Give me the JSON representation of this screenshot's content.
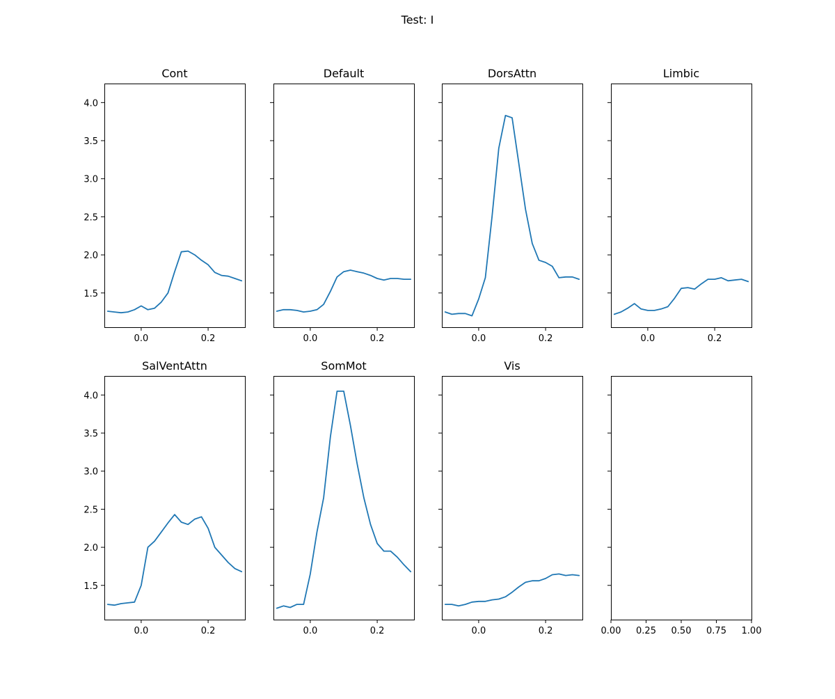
{
  "figure": {
    "title": "Test: I"
  },
  "style": {
    "line_color": "#1f77b4"
  },
  "chart_data": [
    {
      "type": "line",
      "title": "Cont",
      "xlim": [
        -0.11,
        0.31
      ],
      "ylim": [
        1.05,
        4.25
      ],
      "xticks": [
        "0.0",
        "0.2"
      ],
      "yticks": [
        "1.5",
        "2.0",
        "2.5",
        "3.0",
        "3.5",
        "4.0"
      ],
      "x": [
        -0.1,
        -0.08,
        -0.06,
        -0.04,
        -0.02,
        0.0,
        0.02,
        0.04,
        0.06,
        0.08,
        0.1,
        0.12,
        0.14,
        0.16,
        0.18,
        0.2,
        0.22,
        0.24,
        0.26,
        0.28,
        0.3
      ],
      "series": [
        {
          "values": [
            1.26,
            1.25,
            1.24,
            1.25,
            1.28,
            1.33,
            1.28,
            1.3,
            1.38,
            1.5,
            1.78,
            2.04,
            2.05,
            2.0,
            1.93,
            1.87,
            1.77,
            1.73,
            1.72,
            1.69,
            1.66
          ]
        }
      ]
    },
    {
      "type": "line",
      "title": "Default",
      "xlim": [
        -0.11,
        0.31
      ],
      "ylim": [
        1.05,
        4.25
      ],
      "xticks": [
        "0.0",
        "0.2"
      ],
      "yticks": [],
      "x": [
        -0.1,
        -0.08,
        -0.06,
        -0.04,
        -0.02,
        0.0,
        0.02,
        0.04,
        0.06,
        0.08,
        0.1,
        0.12,
        0.14,
        0.16,
        0.18,
        0.2,
        0.22,
        0.24,
        0.26,
        0.28,
        0.3
      ],
      "series": [
        {
          "values": [
            1.26,
            1.28,
            1.28,
            1.27,
            1.25,
            1.26,
            1.28,
            1.35,
            1.52,
            1.71,
            1.78,
            1.8,
            1.78,
            1.76,
            1.73,
            1.69,
            1.67,
            1.69,
            1.69,
            1.68,
            1.68
          ]
        }
      ]
    },
    {
      "type": "line",
      "title": "DorsAttn",
      "xlim": [
        -0.11,
        0.31
      ],
      "ylim": [
        1.05,
        4.25
      ],
      "xticks": [
        "0.0",
        "0.2"
      ],
      "yticks": [],
      "x": [
        -0.1,
        -0.08,
        -0.06,
        -0.04,
        -0.02,
        0.0,
        0.02,
        0.04,
        0.06,
        0.08,
        0.1,
        0.12,
        0.14,
        0.16,
        0.18,
        0.2,
        0.22,
        0.24,
        0.26,
        0.28,
        0.3
      ],
      "series": [
        {
          "values": [
            1.25,
            1.22,
            1.23,
            1.23,
            1.2,
            1.42,
            1.7,
            2.5,
            3.4,
            3.83,
            3.8,
            3.2,
            2.6,
            2.15,
            1.93,
            1.9,
            1.85,
            1.7,
            1.71,
            1.71,
            1.68
          ]
        }
      ]
    },
    {
      "type": "line",
      "title": "Limbic",
      "xlim": [
        -0.11,
        0.31
      ],
      "ylim": [
        1.05,
        4.25
      ],
      "xticks": [
        "0.0",
        "0.2"
      ],
      "yticks": [],
      "x": [
        -0.1,
        -0.08,
        -0.06,
        -0.04,
        -0.02,
        0.0,
        0.02,
        0.04,
        0.06,
        0.08,
        0.1,
        0.12,
        0.14,
        0.16,
        0.18,
        0.2,
        0.22,
        0.24,
        0.26,
        0.28,
        0.3
      ],
      "series": [
        {
          "values": [
            1.22,
            1.25,
            1.3,
            1.36,
            1.29,
            1.27,
            1.27,
            1.29,
            1.32,
            1.43,
            1.56,
            1.57,
            1.55,
            1.62,
            1.68,
            1.68,
            1.7,
            1.66,
            1.67,
            1.68,
            1.65
          ]
        }
      ]
    },
    {
      "type": "line",
      "title": "SalVentAttn",
      "xlim": [
        -0.11,
        0.31
      ],
      "ylim": [
        1.05,
        4.25
      ],
      "xticks": [
        "0.0",
        "0.2"
      ],
      "yticks": [
        "1.5",
        "2.0",
        "2.5",
        "3.0",
        "3.5",
        "4.0"
      ],
      "x": [
        -0.1,
        -0.08,
        -0.06,
        -0.04,
        -0.02,
        0.0,
        0.02,
        0.04,
        0.06,
        0.08,
        0.1,
        0.12,
        0.14,
        0.16,
        0.18,
        0.2,
        0.22,
        0.24,
        0.26,
        0.28,
        0.3
      ],
      "series": [
        {
          "values": [
            1.25,
            1.24,
            1.26,
            1.27,
            1.28,
            1.5,
            2.0,
            2.08,
            2.2,
            2.32,
            2.43,
            2.33,
            2.3,
            2.37,
            2.4,
            2.25,
            2.0,
            1.9,
            1.8,
            1.72,
            1.68
          ]
        }
      ]
    },
    {
      "type": "line",
      "title": "SomMot",
      "xlim": [
        -0.11,
        0.31
      ],
      "ylim": [
        1.05,
        4.25
      ],
      "xticks": [
        "0.0",
        "0.2"
      ],
      "yticks": [],
      "x": [
        -0.1,
        -0.08,
        -0.06,
        -0.04,
        -0.02,
        0.0,
        0.02,
        0.04,
        0.06,
        0.08,
        0.1,
        0.12,
        0.14,
        0.16,
        0.18,
        0.2,
        0.22,
        0.24,
        0.26,
        0.28,
        0.3
      ],
      "series": [
        {
          "values": [
            1.2,
            1.23,
            1.21,
            1.25,
            1.25,
            1.65,
            2.2,
            2.65,
            3.45,
            4.05,
            4.05,
            3.6,
            3.1,
            2.65,
            2.3,
            2.05,
            1.95,
            1.95,
            1.87,
            1.77,
            1.68
          ]
        }
      ]
    },
    {
      "type": "line",
      "title": "Vis",
      "xlim": [
        -0.11,
        0.31
      ],
      "ylim": [
        1.05,
        4.25
      ],
      "xticks": [
        "0.0",
        "0.2"
      ],
      "yticks": [],
      "x": [
        -0.1,
        -0.08,
        -0.06,
        -0.04,
        -0.02,
        0.0,
        0.02,
        0.04,
        0.06,
        0.08,
        0.1,
        0.12,
        0.14,
        0.16,
        0.18,
        0.2,
        0.22,
        0.24,
        0.26,
        0.28,
        0.3
      ],
      "series": [
        {
          "values": [
            1.25,
            1.25,
            1.23,
            1.25,
            1.28,
            1.29,
            1.29,
            1.31,
            1.32,
            1.35,
            1.41,
            1.48,
            1.54,
            1.56,
            1.56,
            1.59,
            1.64,
            1.65,
            1.63,
            1.64,
            1.63
          ]
        }
      ]
    },
    {
      "type": "line",
      "title": "",
      "xlim": [
        0,
        1
      ],
      "ylim": [
        1.05,
        4.25
      ],
      "xticks": [
        "0.00",
        "0.25",
        "0.50",
        "0.75",
        "1.00"
      ],
      "yticks": [],
      "x": [],
      "series": []
    }
  ]
}
